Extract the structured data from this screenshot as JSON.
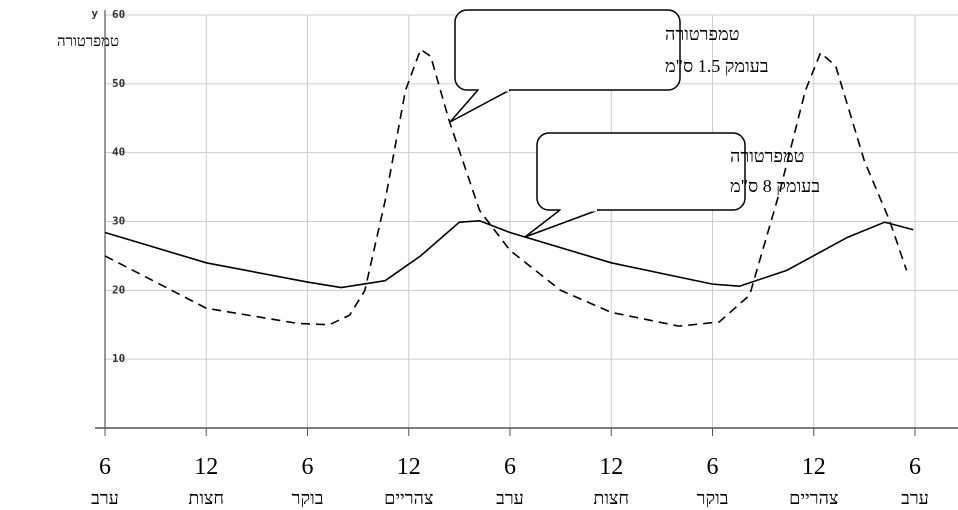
{
  "chart_data": {
    "type": "line",
    "y_axis_symbol": "y",
    "y_label": "טמפרטורה",
    "xlim": [
      0,
      48
    ],
    "ylim": [
      0,
      60
    ],
    "yticks": [
      10,
      20,
      30,
      40,
      50,
      60
    ],
    "xticks": [
      {
        "value": 0,
        "label": "6"
      },
      {
        "value": 6,
        "label": "12"
      },
      {
        "value": 12,
        "label": "6"
      },
      {
        "value": 18,
        "label": "12"
      },
      {
        "value": 24,
        "label": "6"
      },
      {
        "value": 30,
        "label": "12"
      },
      {
        "value": 36,
        "label": "6"
      },
      {
        "value": 42,
        "label": "12"
      },
      {
        "value": 48,
        "label": "6"
      }
    ],
    "xtick_sublabels": [
      "ערב",
      "חצות",
      "בוקר",
      "צהריים",
      "ערב",
      "חצות",
      "בוקר",
      "צהריים",
      "ערב"
    ],
    "grid": true,
    "series": [
      {
        "name": "טמפרטורה בעומק 1.5 ס\"מ",
        "color": "#000",
        "dash": true,
        "annotation": [
          "טמפרטורה",
          "בעומק 1.5  ס\"מ"
        ],
        "x": [
          0,
          6,
          11.4,
          13.3,
          14.5,
          15.4,
          16.6,
          17.8,
          18.7,
          19.3,
          20.4,
          22.2,
          24,
          27,
          30,
          34,
          36.4,
          38.2,
          40,
          41.5,
          42.4,
          43.3,
          45,
          46.5,
          47.5
        ],
        "values": [
          25,
          17.4,
          15.2,
          15,
          16.4,
          20,
          33,
          49,
          55,
          54,
          44.6,
          31.6,
          25.8,
          20,
          16.8,
          14.8,
          15.4,
          19.3,
          34.5,
          49,
          54.5,
          52.6,
          38.8,
          30.1,
          22.9
        ]
      },
      {
        "name": "טמפרטורה בעומק 8 ס\"מ",
        "color": "#000",
        "dash": false,
        "annotation": [
          "טמפרטורה",
          "בעומק 8 ס\"מ"
        ],
        "x": [
          0,
          6,
          12,
          14,
          16.6,
          18.7,
          21,
          22.2,
          24,
          30,
          36,
          37.6,
          40.4,
          44,
          46.2,
          47.9
        ],
        "values": [
          28.4,
          24,
          21.2,
          20.4,
          21.4,
          25,
          29.9,
          30.1,
          28.4,
          24,
          20.9,
          20.6,
          22.9,
          27.7,
          29.9,
          28.8
        ]
      }
    ]
  }
}
